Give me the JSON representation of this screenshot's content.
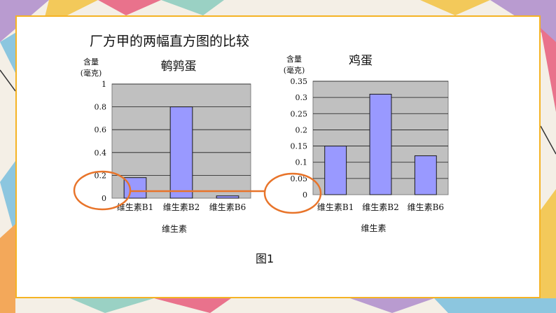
{
  "page": {
    "title": "厂方甲的两幅直方图的比较",
    "caption": "图1"
  },
  "colors": {
    "plot_bg": "#c0c0c0",
    "bar_fill": "#9999ff",
    "bar_stroke": "#1a1a1a",
    "highlight": "#e8742a",
    "border": "#f5b324"
  },
  "chart_data": [
    {
      "type": "bar",
      "title": "鹌鹑蛋",
      "ylabel_lines": [
        "含量",
        "(毫克)"
      ],
      "xlabel": "维生素",
      "categories": [
        "维生素B1",
        "维生素B2",
        "维生素B6"
      ],
      "values": [
        0.18,
        0.8,
        0.02
      ],
      "yticks": [
        "0",
        "0.2",
        "0.4",
        "0.6",
        "0.8",
        "1"
      ],
      "ylim": [
        0,
        1
      ],
      "grid": true
    },
    {
      "type": "bar",
      "title": "鸡蛋",
      "ylabel_lines": [
        "含量",
        "(毫克)"
      ],
      "xlabel": "维生素",
      "categories": [
        "维生素B1",
        "维生素B2",
        "维生素B6"
      ],
      "values": [
        0.15,
        0.31,
        0.12
      ],
      "yticks": [
        "0",
        "0.05",
        "0.1",
        "0.15",
        "0.2",
        "0.25",
        "0.3",
        "0.35"
      ],
      "ylim": [
        0,
        0.35
      ],
      "grid": true
    }
  ]
}
